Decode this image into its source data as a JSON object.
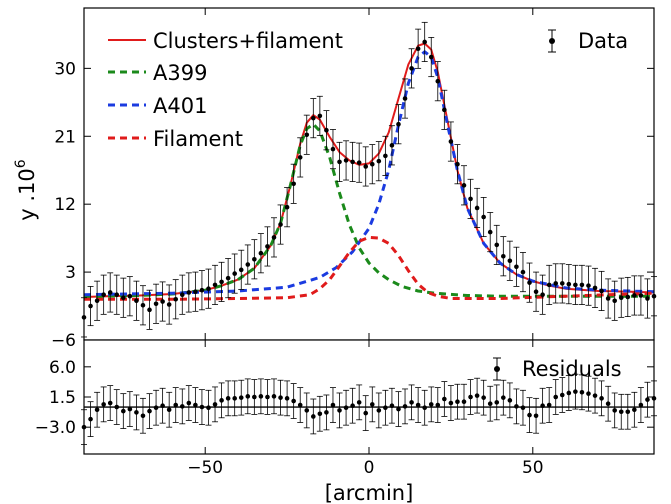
{
  "chart_data": [
    {
      "type": "line",
      "panel": "main",
      "xlabel": "",
      "ylabel": "y .10",
      "ylabel_exponent": "6",
      "xlim": [
        -87,
        87
      ],
      "ylim": [
        -6,
        38
      ],
      "yticks": [
        -6,
        3,
        12,
        21,
        30
      ],
      "ytick_labels": [
        "−6",
        "3",
        "12",
        "21",
        "30"
      ],
      "xticks": [
        -50,
        0,
        50
      ],
      "legend_left": [
        "Clusters+filament",
        "A399",
        "A401",
        "Filament"
      ],
      "legend_right": [
        "Data"
      ],
      "series": [
        {
          "name": "Clusters+filament",
          "style": "solid",
          "color": "#e01b1b",
          "x": [
            -87,
            -80,
            -70,
            -60,
            -50,
            -45,
            -40,
            -35,
            -30,
            -27,
            -24,
            -21,
            -19,
            -17,
            -15,
            -12,
            -9,
            -6,
            -3,
            0,
            3,
            6,
            9,
            12,
            15,
            17,
            19,
            21,
            24,
            27,
            30,
            35,
            40,
            45,
            50,
            55,
            60,
            70,
            80,
            87
          ],
          "y": [
            -0.3,
            -0.2,
            -0.1,
            0.1,
            0.6,
            1.2,
            2.0,
            3.5,
            6.5,
            9.5,
            14.5,
            20.0,
            22.8,
            23.8,
            23.2,
            20.9,
            18.9,
            17.8,
            17.2,
            17.4,
            18.7,
            21.5,
            26.0,
            30.5,
            33.0,
            33.3,
            32.5,
            29.5,
            23.0,
            16.5,
            11.5,
            6.8,
            4.2,
            2.7,
            1.8,
            1.2,
            0.8,
            0.5,
            0.4,
            0.3
          ]
        },
        {
          "name": "A399",
          "style": "dashed",
          "color": "#1b8a1b",
          "x": [
            -87,
            -80,
            -70,
            -60,
            -50,
            -45,
            -40,
            -35,
            -30,
            -27,
            -24,
            -21,
            -19,
            -17,
            -15,
            -12,
            -9,
            -6,
            -3,
            0,
            3,
            6,
            10,
            15,
            20,
            30,
            40,
            60,
            87
          ],
          "y": [
            -0.3,
            -0.2,
            -0.1,
            0.1,
            0.6,
            1.2,
            2.0,
            3.5,
            6.5,
            9.5,
            14.5,
            19.8,
            22.0,
            22.6,
            21.7,
            18.2,
            13.5,
            9.3,
            6.2,
            4.2,
            2.9,
            2.0,
            1.1,
            0.5,
            0.2,
            -0.1,
            -0.2,
            -0.2,
            -0.2
          ]
        },
        {
          "name": "A401",
          "style": "dashed",
          "color": "#1b3be0",
          "x": [
            -87,
            -60,
            -40,
            -25,
            -15,
            -10,
            -5,
            0,
            3,
            6,
            9,
            12,
            15,
            17,
            19,
            21,
            24,
            27,
            30,
            35,
            40,
            45,
            50,
            60,
            70,
            87
          ],
          "y": [
            0.0,
            0.2,
            0.5,
            1.0,
            2.3,
            3.6,
            5.7,
            8.8,
            12.0,
            16.5,
            22.5,
            28.0,
            31.5,
            32.2,
            31.5,
            28.8,
            22.5,
            16.5,
            11.5,
            6.8,
            4.2,
            2.7,
            1.8,
            0.9,
            0.6,
            0.4
          ]
        },
        {
          "name": "Filament",
          "style": "dashed",
          "color": "#e01b1b",
          "x": [
            -87,
            -60,
            -40,
            -25,
            -18,
            -15,
            -12,
            -9,
            -6,
            -3,
            0,
            3,
            6,
            9,
            12,
            15,
            18,
            21,
            25,
            40,
            60,
            87
          ],
          "y": [
            -0.6,
            -0.6,
            -0.5,
            -0.4,
            0.0,
            0.8,
            2.0,
            3.8,
            5.6,
            7.1,
            7.6,
            7.5,
            6.8,
            5.2,
            3.2,
            1.4,
            0.3,
            -0.2,
            -0.5,
            -0.5,
            -0.2,
            0.2
          ]
        }
      ],
      "data_points": {
        "name": "Data",
        "x": [
          -87,
          -85,
          -83,
          -81,
          -79,
          -77,
          -75,
          -73,
          -71,
          -69,
          -67,
          -65,
          -63,
          -61,
          -59,
          -57,
          -55,
          -53,
          -51,
          -49,
          -47,
          -45,
          -43,
          -41,
          -39,
          -37,
          -35,
          -33,
          -31,
          -29,
          -27,
          -25,
          -23,
          -21,
          -19,
          -17,
          -15,
          -13,
          -11,
          -9,
          -7,
          -5,
          -3,
          -1,
          1,
          3,
          5,
          7,
          9,
          11,
          13,
          15,
          17,
          19,
          21,
          23,
          25,
          27,
          29,
          31,
          33,
          35,
          37,
          39,
          41,
          43,
          45,
          47,
          49,
          51,
          53,
          55,
          57,
          59,
          61,
          63,
          65,
          67,
          69,
          71,
          73,
          75,
          77,
          79,
          81,
          83,
          85,
          87
        ],
        "y": [
          -3.0,
          -1.5,
          -0.8,
          0.0,
          0.3,
          0.0,
          -0.4,
          -0.2,
          -0.8,
          -1.4,
          -2.0,
          -1.2,
          -0.9,
          -1.3,
          -0.6,
          0.0,
          0.3,
          0.4,
          0.6,
          0.8,
          1.3,
          1.7,
          2.2,
          2.8,
          3.3,
          4.0,
          4.7,
          5.5,
          6.4,
          7.6,
          9.3,
          11.6,
          14.7,
          18.2,
          21.2,
          23.4,
          23.7,
          21.8,
          19.3,
          17.6,
          17.8,
          17.6,
          17.5,
          17.0,
          17.3,
          17.7,
          18.4,
          19.8,
          22.6,
          26.0,
          30.0,
          32.6,
          33.5,
          31.5,
          28.3,
          24.5,
          20.3,
          17.3,
          14.5,
          12.7,
          11.5,
          10.3,
          8.3,
          6.6,
          5.1,
          4.5,
          3.7,
          3.0,
          1.6,
          0.4,
          0.0,
          1.3,
          1.5,
          1.5,
          1.4,
          1.3,
          1.3,
          1.2,
          0.9,
          0.5,
          -0.5,
          -0.8,
          -0.4,
          -0.3,
          -0.1,
          -0.1,
          -0.5,
          -0.2
        ],
        "err": 2.6
      }
    },
    {
      "type": "scatter",
      "panel": "residuals",
      "xlabel": "[arcmin]",
      "ylabel": "",
      "xlim": [
        -87,
        87
      ],
      "ylim": [
        -7,
        10
      ],
      "yticks": [
        -3.0,
        1.5,
        6.0
      ],
      "ytick_labels": [
        "−3.0",
        "1.5",
        "6.0"
      ],
      "xticks": [
        -50,
        0,
        50
      ],
      "xtick_labels": [
        "−50",
        "0",
        "50"
      ],
      "legend_right": [
        "Residuals"
      ],
      "zero_line": 0,
      "data_points": {
        "name": "Residuals",
        "x": [
          -87,
          -85,
          -83,
          -81,
          -79,
          -77,
          -75,
          -73,
          -71,
          -69,
          -67,
          -65,
          -63,
          -61,
          -59,
          -57,
          -55,
          -53,
          -51,
          -49,
          -47,
          -45,
          -43,
          -41,
          -39,
          -37,
          -35,
          -33,
          -31,
          -29,
          -27,
          -25,
          -23,
          -21,
          -19,
          -17,
          -15,
          -13,
          -11,
          -9,
          -7,
          -5,
          -3,
          -1,
          1,
          3,
          5,
          7,
          9,
          11,
          13,
          15,
          17,
          19,
          21,
          23,
          25,
          27,
          29,
          31,
          33,
          35,
          37,
          39,
          41,
          43,
          45,
          47,
          49,
          51,
          53,
          55,
          57,
          59,
          61,
          63,
          65,
          67,
          69,
          71,
          73,
          75,
          77,
          79,
          81,
          83,
          85,
          87
        ],
        "y": [
          -3.0,
          -1.8,
          -0.4,
          0.4,
          0.6,
          0.0,
          -0.6,
          -0.3,
          -0.8,
          -1.3,
          -0.6,
          -0.1,
          0.2,
          -0.4,
          0.3,
          0.1,
          0.6,
          0.3,
          0.0,
          -0.1,
          0.4,
          1.0,
          1.3,
          1.3,
          1.4,
          1.6,
          1.5,
          1.6,
          1.5,
          1.6,
          1.4,
          1.3,
          0.9,
          0.3,
          -0.5,
          -1.4,
          -1.0,
          -0.8,
          0.3,
          -0.5,
          -0.1,
          0.2,
          0.7,
          -0.9,
          0.4,
          -0.5,
          -0.1,
          0.2,
          -0.3,
          0.1,
          0.7,
          0.3,
          -0.1,
          0.4,
          0.3,
          1.2,
          0.6,
          0.8,
          0.8,
          1.5,
          1.7,
          1.4,
          0.5,
          0.7,
          1.4,
          1.0,
          0.1,
          -0.1,
          -1.2,
          -1.3,
          0.2,
          0.3,
          1.5,
          1.8,
          2.1,
          2.3,
          2.2,
          2.0,
          1.7,
          1.3,
          0.5,
          -0.5,
          -0.7,
          -0.7,
          -0.4,
          0.3,
          1.1,
          1.3
        ],
        "err": 2.6
      }
    }
  ]
}
